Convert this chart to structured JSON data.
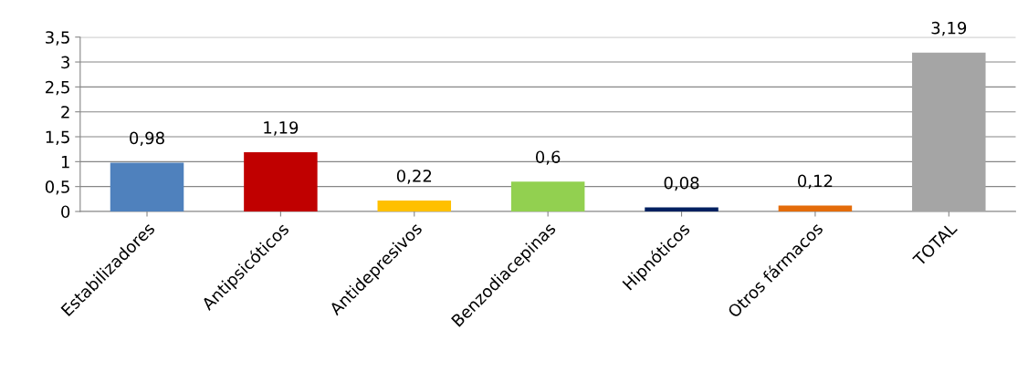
{
  "chart_data": {
    "type": "bar",
    "categories": [
      "Estabilizadores",
      "Antipsicóticos",
      "Antidepresivos",
      "Benzodiacepinas",
      "Hipnóticos",
      "Otros fármacos",
      "TOTAL"
    ],
    "values": [
      0.98,
      1.19,
      0.22,
      0.6,
      0.08,
      0.12,
      3.19
    ],
    "colors": [
      "#4f81bd",
      "#c00000",
      "#ffc000",
      "#92d050",
      "#002060",
      "#e46c0a",
      "#a5a5a5"
    ],
    "value_labels": [
      "0,98",
      "1,19",
      "0,22",
      "0,6",
      "0,08",
      "0,12",
      "3,19"
    ],
    "ylim": [
      0,
      3.5
    ],
    "yticks": [
      0,
      {
        "value": 0.5,
        "label": "0,5"
      },
      1,
      {
        "value": 1.5,
        "label": "1,5"
      },
      2,
      {
        "value": 2.5,
        "label": "2,5"
      },
      3,
      {
        "value": 3.5,
        "label": "3,5"
      }
    ],
    "grid": "y"
  }
}
